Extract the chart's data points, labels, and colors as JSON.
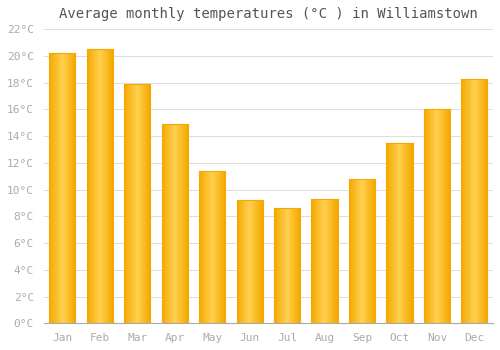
{
  "title": "Average monthly temperatures (°C ) in Williamstown",
  "months": [
    "Jan",
    "Feb",
    "Mar",
    "Apr",
    "May",
    "Jun",
    "Jul",
    "Aug",
    "Sep",
    "Oct",
    "Nov",
    "Dec"
  ],
  "values": [
    20.2,
    20.5,
    17.9,
    14.9,
    11.4,
    9.2,
    8.6,
    9.3,
    10.8,
    13.5,
    16.0,
    18.3
  ],
  "bar_color_center": "#FFD050",
  "bar_color_edge": "#F5A800",
  "ylim": [
    0,
    22
  ],
  "ytick_step": 2,
  "background_color": "#FFFFFF",
  "plot_bg_color": "#FFFFFF",
  "grid_color": "#DDDDDD",
  "title_fontsize": 10,
  "tick_fontsize": 8,
  "tick_color": "#AAAAAA",
  "font_family": "monospace",
  "bar_width": 0.7
}
